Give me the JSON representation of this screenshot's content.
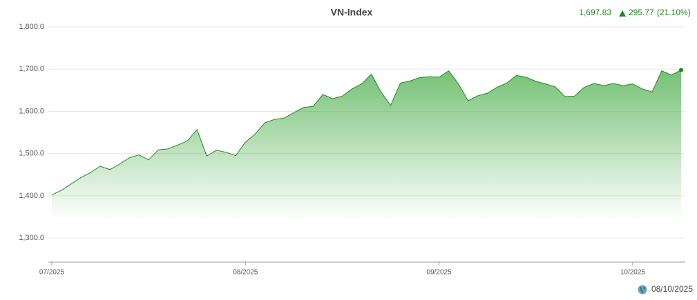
{
  "header": {
    "last_value": "1,697.83",
    "change": "295.77",
    "change_pct": "(21.10%)",
    "date": "08/10/2025"
  },
  "chart_data": {
    "type": "area",
    "title": "VN-Index",
    "color": "#1e8a1e",
    "categories": [
      "07/2025",
      null,
      null,
      null,
      null,
      null,
      null,
      null,
      null,
      null,
      null,
      null,
      null,
      null,
      null,
      null,
      null,
      null,
      null,
      null,
      "08/2025",
      null,
      null,
      null,
      null,
      null,
      null,
      null,
      null,
      null,
      null,
      null,
      null,
      null,
      null,
      null,
      null,
      null,
      null,
      null,
      "09/2025",
      null,
      null,
      null,
      null,
      null,
      null,
      null,
      null,
      null,
      null,
      null,
      null,
      null,
      null,
      null,
      null,
      null,
      null,
      null,
      "10/2025",
      null,
      null,
      null,
      null,
      null
    ],
    "values": [
      1402.06,
      1413,
      1428,
      1443,
      1455,
      1470,
      1462,
      1475,
      1490,
      1497,
      1485,
      1509,
      1511,
      1520,
      1530,
      1557,
      1494,
      1508,
      1503,
      1495,
      1527,
      1546,
      1573,
      1581,
      1584,
      1597,
      1609,
      1612,
      1640,
      1630,
      1636,
      1653,
      1665,
      1688,
      1646,
      1614,
      1667,
      1672,
      1680,
      1682,
      1681,
      1696,
      1665,
      1625,
      1637,
      1643,
      1657,
      1667,
      1685,
      1681,
      1671,
      1665,
      1658,
      1635,
      1636,
      1657,
      1666,
      1661,
      1666,
      1661,
      1665,
      1653,
      1646,
      1696,
      1686,
      1697.83
    ],
    "ylim": [
      1243,
      1800
    ],
    "yticks": [
      {
        "value": 1300,
        "label": "1,300.0"
      },
      {
        "value": 1400,
        "label": "1,400.0"
      },
      {
        "value": 1500,
        "label": "1,500.0"
      },
      {
        "value": 1600,
        "label": "1,600.0"
      },
      {
        "value": 1700,
        "label": "1,700.0"
      },
      {
        "value": 1800,
        "label": "1,800.0"
      }
    ],
    "grid": true
  }
}
